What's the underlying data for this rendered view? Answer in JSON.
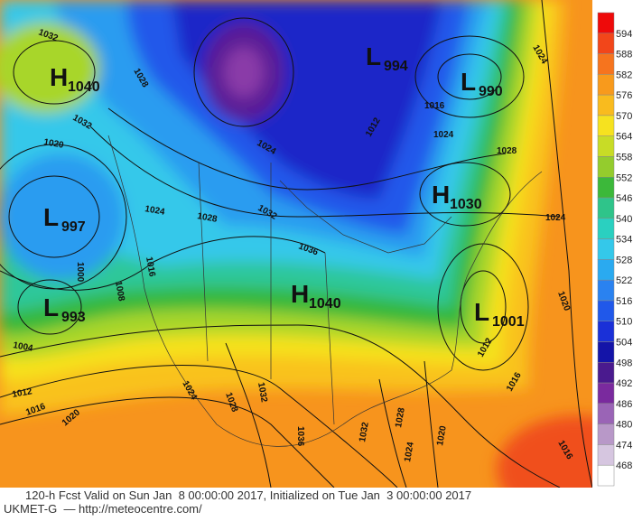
{
  "map": {
    "centers": [
      {
        "letter": "H",
        "value": 1040
      },
      {
        "letter": "L",
        "value": 994
      },
      {
        "letter": "L",
        "value": 990
      },
      {
        "letter": "H",
        "value": 1030
      },
      {
        "letter": "L",
        "value": 997
      },
      {
        "letter": "L",
        "value": 993
      },
      {
        "letter": "H",
        "value": 1040
      },
      {
        "letter": "L",
        "value": 1001
      }
    ],
    "isobar_labels": [
      1032,
      1028,
      1032,
      1020,
      1024,
      1028,
      1032,
      1036,
      1024,
      1000,
      1008,
      1016,
      1004,
      1012,
      1016,
      1020,
      1024,
      1028,
      1032,
      1036,
      1032,
      1028,
      1024,
      1020,
      1012,
      1016,
      1016,
      1020,
      1024,
      1028,
      1024,
      1024,
      1016,
      1012
    ],
    "colorbar": {
      "labels": [
        594,
        588,
        582,
        576,
        570,
        564,
        558,
        552,
        546,
        540,
        534,
        528,
        522,
        516,
        510,
        504,
        498,
        492,
        486,
        480,
        474,
        468
      ],
      "colors": [
        "#ee0a0a",
        "#f2461a",
        "#f6741e",
        "#f89a1c",
        "#f9bb1e",
        "#f6e21f",
        "#c8dc26",
        "#94cc2d",
        "#3cb83a",
        "#2fc48a",
        "#2ad0c0",
        "#34c8ea",
        "#2aaaf0",
        "#2a82f0",
        "#2058ea",
        "#1a30d8",
        "#1414a8",
        "#4a1a8e",
        "#7a2a9e",
        "#9a64b6",
        "#b898c8",
        "#d6c6e0",
        "#ffffff"
      ]
    }
  },
  "footer": {
    "line1": "120-h Fcst Valid on Sun Jan  8 00:00:00 2017, Initialized on Tue Jan  3 00:00:00 2017",
    "line2": "UKMET-G  — http://meteocentre.com/"
  }
}
